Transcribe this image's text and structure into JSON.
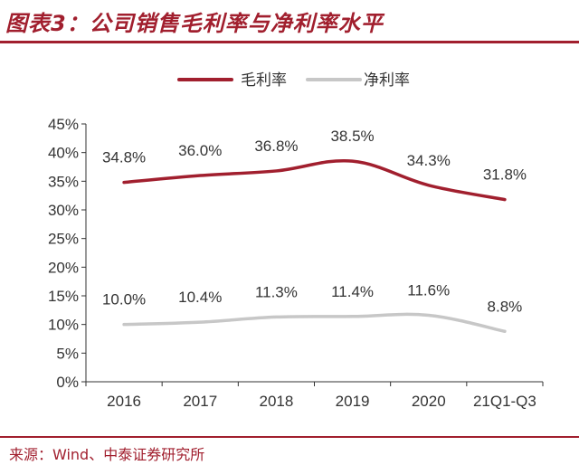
{
  "header": {
    "title": "图表3：公司销售毛利率与净利率水平"
  },
  "source": "来源：Wind、中泰证券研究所",
  "colors": {
    "accent": "#a11f2e",
    "gross": "#a11f2e",
    "net": "#c7c7c7",
    "axis": "#333333"
  },
  "chart_data": {
    "type": "line",
    "title": "公司销售毛利率与净利率水平",
    "categories": [
      "2016",
      "2017",
      "2018",
      "2019",
      "2020",
      "21Q1-Q3"
    ],
    "series": [
      {
        "name": "毛利率",
        "values": [
          34.8,
          36.0,
          36.8,
          38.5,
          34.3,
          31.8
        ],
        "labels": [
          "34.8%",
          "36.0%",
          "36.8%",
          "38.5%",
          "34.3%",
          "31.8%"
        ]
      },
      {
        "name": "净利率",
        "values": [
          10.0,
          10.4,
          11.3,
          11.4,
          11.6,
          8.8
        ],
        "labels": [
          "10.0%",
          "10.4%",
          "11.3%",
          "11.4%",
          "11.6%",
          "8.8%"
        ]
      }
    ],
    "yticks": [
      "0%",
      "5%",
      "10%",
      "15%",
      "20%",
      "25%",
      "30%",
      "35%",
      "40%",
      "45%"
    ],
    "ylim": [
      0,
      45
    ],
    "legend_position": "top",
    "grid": false
  }
}
